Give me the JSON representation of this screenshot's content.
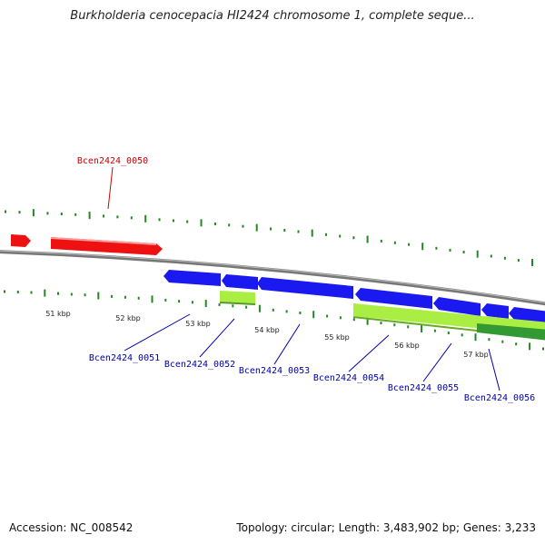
{
  "title": "Burkholderia cenocepacia HI2424 chromosome 1, complete seque...",
  "colors": {
    "top_strand_gene": "#ee1111",
    "bottom_strand_gene": "#1a1af0",
    "feature_light": "#aaee44",
    "feature_dark": "#339933",
    "backbone": "#888888",
    "tick": "#228822",
    "top_label": "#cc0000",
    "bottom_label": "#0000aa"
  },
  "ruler_labels": [
    "51 kbp",
    "52 kbp",
    "53 kbp",
    "54 kbp",
    "55 kbp",
    "56 kbp",
    "57 kbp"
  ],
  "genes": [
    {
      "id": "Bcen2424_0050",
      "strand": "top"
    },
    {
      "id": "Bcen2424_0051",
      "strand": "bottom"
    },
    {
      "id": "Bcen2424_0052",
      "strand": "bottom"
    },
    {
      "id": "Bcen2424_0053",
      "strand": "bottom"
    },
    {
      "id": "Bcen2424_0054",
      "strand": "bottom"
    },
    {
      "id": "Bcen2424_0055",
      "strand": "bottom"
    },
    {
      "id": "Bcen2424_0056",
      "strand": "bottom"
    }
  ],
  "footer": {
    "accession": "Accession: NC_008542",
    "stats": "Topology: circular; Length: 3,483,902 bp; Genes: 3,233"
  }
}
